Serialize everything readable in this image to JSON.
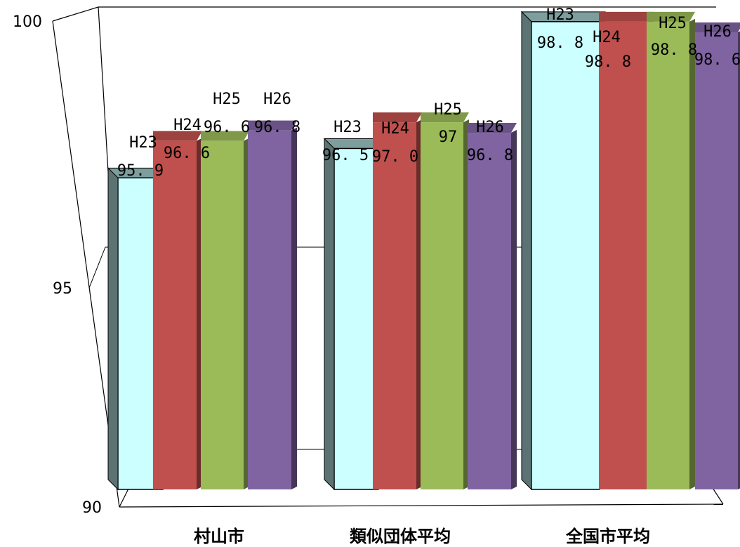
{
  "chart_data": {
    "type": "bar",
    "categories": [
      "村山市",
      "類似団体平均",
      "全国市平均"
    ],
    "series": [
      {
        "name": "H23",
        "values": [
          95.9,
          96.5,
          98.8
        ],
        "labels": [
          "95.9",
          "96.5",
          "98.8"
        ],
        "color": "#ccffff"
      },
      {
        "name": "H24",
        "values": [
          96.6,
          97.0,
          98.8
        ],
        "labels": [
          "96.6",
          "97.0",
          "98.8"
        ],
        "color": "#c0504d"
      },
      {
        "name": "H25",
        "values": [
          96.6,
          97.0,
          98.8
        ],
        "labels": [
          "96.6",
          "97",
          "98.8"
        ],
        "color": "#9bbb59"
      },
      {
        "name": "H26",
        "values": [
          96.8,
          96.8,
          98.6
        ],
        "labels": [
          "96.8",
          "96.8",
          "98.6"
        ],
        "color": "#8064a2"
      }
    ],
    "ylim": [
      90,
      100
    ],
    "yticks": [
      "90",
      "95",
      "100"
    ],
    "title": "",
    "xlabel": "",
    "ylabel": "",
    "grid": true,
    "style": "3d"
  }
}
